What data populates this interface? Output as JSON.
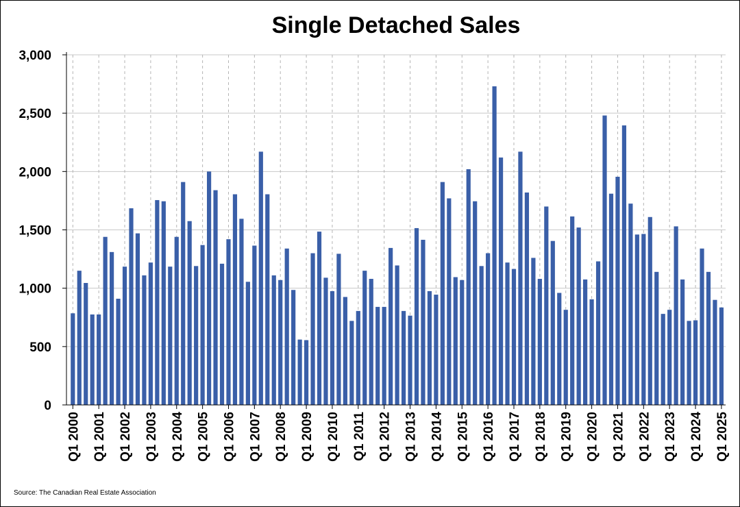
{
  "chart_data": {
    "type": "bar",
    "title": "Single Detached Sales",
    "source": "Source: The Canadian Real Estate Association",
    "bar_color": "#3a5fa8",
    "ylim": [
      0,
      3000
    ],
    "y_ticks": [
      "0",
      "500",
      "1,000",
      "1,500",
      "2,000",
      "2,500",
      "3,000"
    ],
    "y_tick_values": [
      0,
      500,
      1000,
      1500,
      2000,
      2500,
      3000
    ],
    "x_tick_labels": [
      "Q1 2000",
      "Q1 2001",
      "Q1 2002",
      "Q1 2003",
      "Q1 2004",
      "Q1 2005",
      "Q1 2006",
      "Q1 2007",
      "Q1 2008",
      "Q1 2009",
      "Q1 2010",
      "Q1 2011",
      "Q1 2012",
      "Q1 2013",
      "Q1 2014",
      "Q1 2015",
      "Q1 2016",
      "Q1 2017",
      "Q1 2018",
      "Q1 2019",
      "Q1 2020",
      "Q1 2021",
      "Q1 2022",
      "Q1 2023",
      "Q1 2024",
      "Q1 2025"
    ],
    "grid": {
      "horizontal": true,
      "vertical": "dashed"
    },
    "x_start": "Q1 2000",
    "x_frequency": "quarterly",
    "values": [
      785,
      1150,
      1045,
      775,
      775,
      1440,
      1310,
      910,
      1185,
      1685,
      1470,
      1110,
      1220,
      1755,
      1745,
      1185,
      1440,
      1910,
      1575,
      1190,
      1370,
      2000,
      1840,
      1210,
      1420,
      1805,
      1595,
      1055,
      1365,
      2170,
      1805,
      1110,
      1070,
      1340,
      985,
      560,
      555,
      1300,
      1485,
      1090,
      975,
      1295,
      925,
      720,
      805,
      1150,
      1080,
      840,
      840,
      1345,
      1195,
      805,
      765,
      1515,
      1415,
      975,
      945,
      1910,
      1770,
      1095,
      1070,
      2020,
      1745,
      1190,
      1300,
      2730,
      2120,
      1220,
      1165,
      2170,
      1820,
      1260,
      1080,
      1700,
      1405,
      960,
      815,
      1615,
      1520,
      1075,
      905,
      1230,
      2480,
      1810,
      1955,
      2395,
      1725,
      1460,
      1465,
      1610,
      1140,
      780,
      815,
      1530,
      1075,
      720,
      725,
      1340,
      1140,
      900,
      835
    ]
  }
}
